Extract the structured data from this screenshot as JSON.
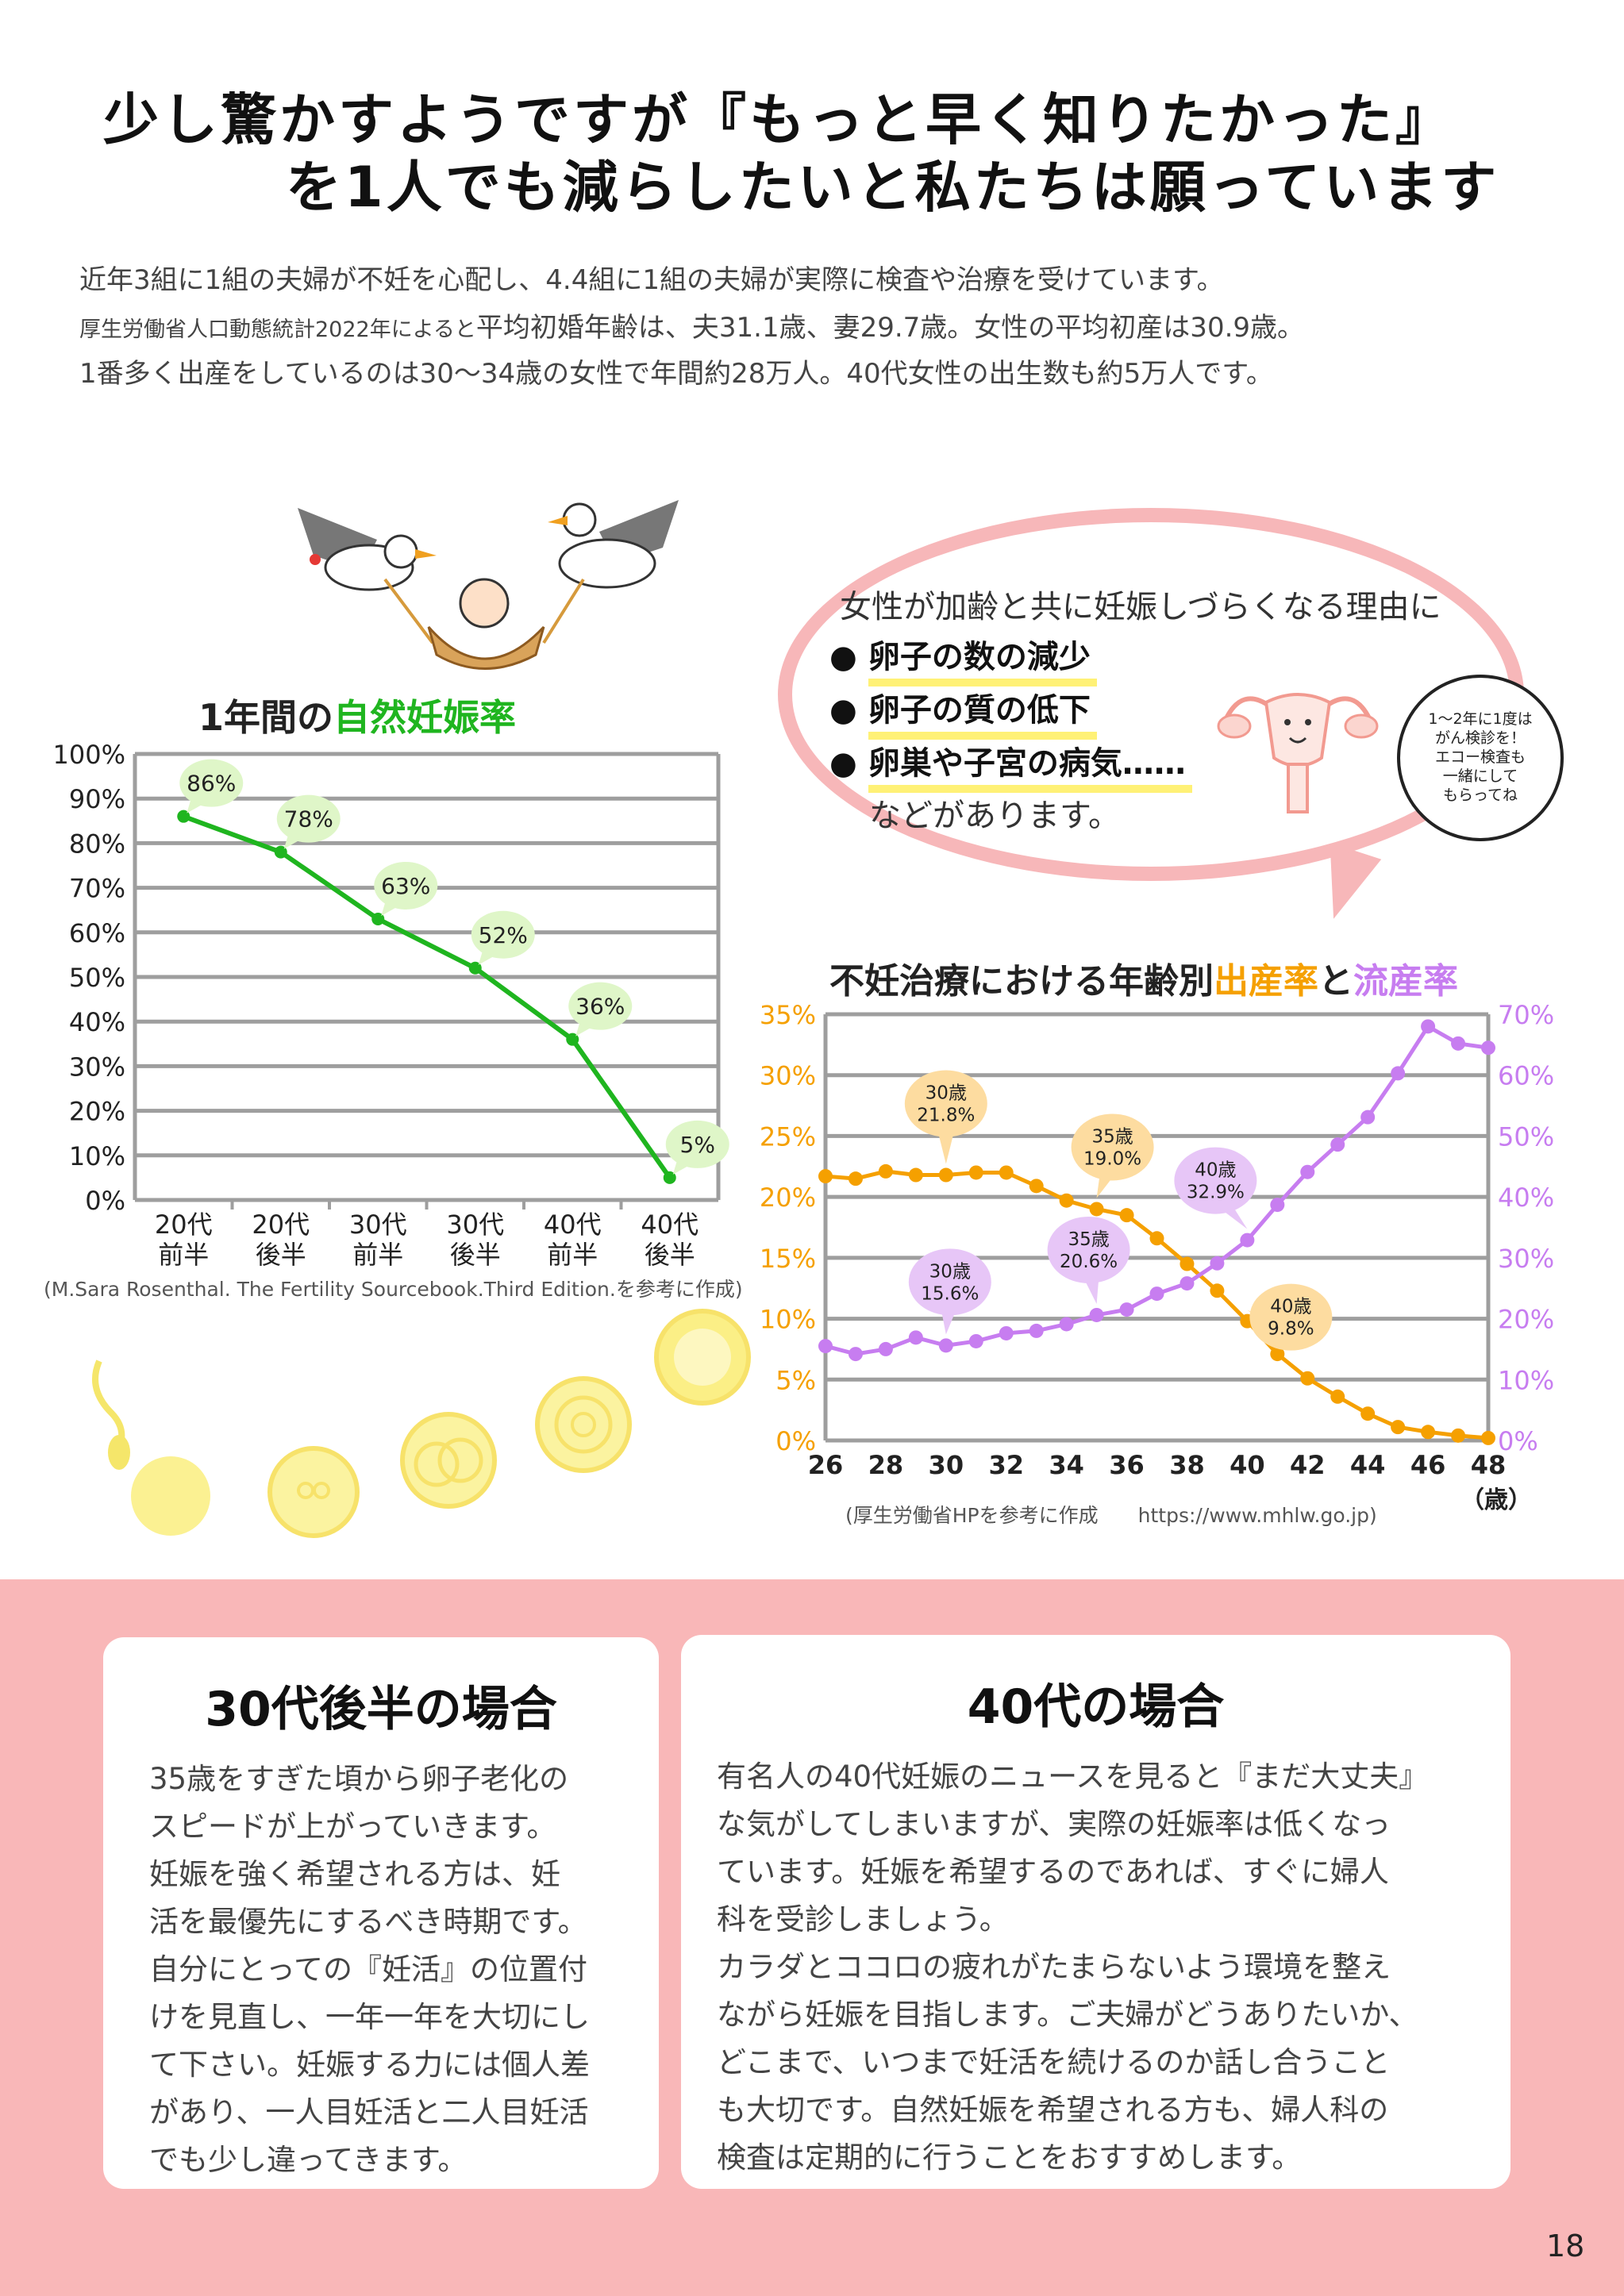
{
  "headline": {
    "line1": "少し驚かすようですが『もっと早く知りたかった』",
    "line2": "を1人でも減らしたいと私たちは願っています"
  },
  "intro": {
    "line1": "近年3組に1組の夫婦が不妊を心配し、4.4組に1組の夫婦が実際に検査や治療を受けています。",
    "line2_small": "厚生労働省人口動態統計2022年によると",
    "line2_rest": "平均初婚年齢は、夫31.1歳、妻29.7歳。女性の平均初産は30.9歳。",
    "line3": "1番多く出産をしているのは30〜34歳の女性で年間約28万人。40代女性の出生数も約5万人です。"
  },
  "speech": {
    "intro": "女性が加齢と共に妊娠しづらくなる理由に",
    "bullet": "●",
    "reasons": [
      "卵子の数の減少",
      "卵子の質の低下",
      "卵巣や子宮の病気……"
    ],
    "outro": "などがあります。",
    "note": [
      "1〜2年に1度は",
      "がん検診を！",
      "エコー検査も",
      "一緒にして",
      "もらってね"
    ]
  },
  "chart_data": [
    {
      "type": "line",
      "title": "1年間の自然妊娠率",
      "title_parts": {
        "plain": "1年間の",
        "highlight": "自然妊娠率"
      },
      "categories": [
        "20代前半",
        "20代後半",
        "30代前半",
        "30代後半",
        "40代前半",
        "40代後半"
      ],
      "category_lines": [
        [
          "20代",
          "前半"
        ],
        [
          "20代",
          "後半"
        ],
        [
          "30代",
          "前半"
        ],
        [
          "30代",
          "後半"
        ],
        [
          "40代",
          "前半"
        ],
        [
          "40代",
          "後半"
        ]
      ],
      "values": [
        86,
        78,
        63,
        52,
        36,
        5
      ],
      "value_labels": [
        "86%",
        "78%",
        "63%",
        "52%",
        "36%",
        "5%"
      ],
      "ylim": [
        0,
        100
      ],
      "yticks": [
        "0%",
        "10%",
        "20%",
        "30%",
        "40%",
        "50%",
        "60%",
        "70%",
        "80%",
        "90%",
        "100%"
      ],
      "grid": true,
      "colors": {
        "line": "#1fb51f",
        "label_bg": "#dff6c8",
        "title_highlight": "#1fb51f"
      },
      "source": "(M.Sara Rosenthal.  The Fertility Sourcebook.Third Edition.を参考に作成)"
    },
    {
      "type": "line",
      "title": "不妊治療における年齢別出産率と流産率",
      "title_parts": {
        "plain1": "不妊治療における年齢別",
        "birth": "出産率",
        "plain2": "と",
        "miscarriage": "流産率"
      },
      "xlabel": "（歳）",
      "x": [
        26,
        27,
        28,
        29,
        30,
        31,
        32,
        33,
        34,
        35,
        36,
        37,
        38,
        39,
        40,
        41,
        42,
        43,
        44,
        45,
        46,
        47,
        48
      ],
      "xticks": [
        26,
        28,
        30,
        32,
        34,
        36,
        38,
        40,
        42,
        44,
        46,
        48
      ],
      "xlim": [
        26,
        48
      ],
      "grid": true,
      "series": [
        {
          "name": "出産率",
          "axis": "left",
          "color": "#f5a000",
          "values": [
            21.7,
            21.5,
            22.1,
            21.8,
            21.8,
            22.0,
            22.0,
            20.9,
            19.7,
            19.0,
            18.5,
            16.6,
            14.5,
            12.3,
            9.8,
            7.1,
            5.1,
            3.6,
            2.2,
            1.1,
            0.7,
            0.4,
            0.2
          ],
          "callouts": [
            {
              "age": 30,
              "lines": [
                "30歳",
                "21.8%"
              ]
            },
            {
              "age": 35,
              "lines": [
                "35歳",
                "19.0%"
              ]
            },
            {
              "age": 40,
              "lines": [
                "40歳",
                "9.8%"
              ]
            }
          ]
        },
        {
          "name": "流産率",
          "axis": "right",
          "color": "#c77df0",
          "values": [
            15.5,
            14.2,
            15.0,
            16.9,
            15.6,
            16.3,
            17.6,
            18.0,
            19.1,
            20.6,
            21.5,
            24.1,
            25.8,
            29.1,
            32.9,
            38.7,
            44.1,
            48.6,
            53.1,
            60.3,
            68.0,
            65.2,
            64.5
          ],
          "callouts": [
            {
              "age": 30,
              "lines": [
                "30歳",
                "15.6%"
              ]
            },
            {
              "age": 35,
              "lines": [
                "35歳",
                "20.6%"
              ]
            },
            {
              "age": 40,
              "lines": [
                "40歳",
                "32.9%"
              ]
            }
          ]
        }
      ],
      "ylim_left": [
        0,
        35
      ],
      "yticks_left": [
        "0%",
        "5%",
        "10%",
        "15%",
        "20%",
        "25%",
        "30%",
        "35%"
      ],
      "ylim_right": [
        0,
        70
      ],
      "yticks_right": [
        "0%",
        "10%",
        "20%",
        "30%",
        "40%",
        "50%",
        "60%",
        "70%"
      ],
      "callout_colors": {
        "birth_bg": "#fddca0",
        "miscarriage_bg": "#e7c6f7"
      },
      "source": "(厚生労働省HPを参考に作成　　https://www.mhlw.go.jp)"
    }
  ],
  "cards": [
    {
      "title": "30代後半の場合",
      "lines": [
        "35歳をすぎた頃から卵子老化の",
        "スピードが上がっていきます。",
        "妊娠を強く希望される方は、妊",
        "活を最優先にするべき時期です。",
        "自分にとっての『妊活』の位置付",
        "けを見直し、一年一年を大切にし",
        "て下さい。妊娠する力には個人差",
        "があり、一人目妊活と二人目妊活",
        "でも少し違ってきます。"
      ]
    },
    {
      "title": "40代の場合",
      "lines": [
        "有名人の40代妊娠のニュースを見ると『まだ大丈夫』",
        "な気がしてしまいますが、実際の妊娠率は低くなっ",
        "ています。妊娠を希望するのであれば、すぐに婦人",
        "科を受診しましょう。",
        "カラダとココロの疲れがたまらないよう環境を整え",
        "ながら妊娠を目指します。ご夫婦がどうありたいか、",
        "どこまで、いつまで妊活を続けるのか話し合うこと",
        "も大切です。自然妊娠を希望される方も、婦人科の",
        "検査は定期的に行うことをおすすめします。"
      ]
    }
  ],
  "page_number": "18"
}
